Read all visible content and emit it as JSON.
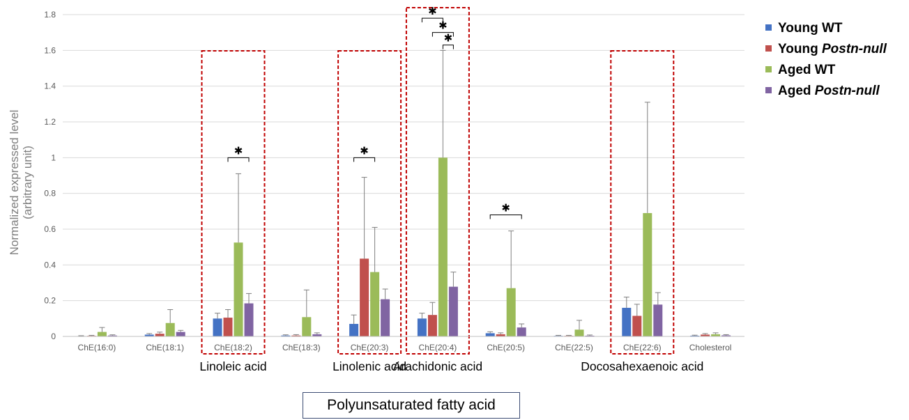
{
  "chart_data": {
    "type": "bar",
    "ylabel_lines": [
      "Normalized expressed level",
      "(arbitrary unit)"
    ],
    "ylim": [
      0,
      1.8
    ],
    "yticks": [
      "0",
      "0.2",
      "0.4",
      "0.6",
      "0.8",
      "1",
      "1.2",
      "1.4",
      "1.6",
      "1.8"
    ],
    "grid": true,
    "legend_position": "top-right",
    "categories": [
      "ChE(16:0)",
      "ChE(18:1)",
      "ChE(18:2)",
      "ChE(18:3)",
      "ChE(20:3)",
      "ChE(20:4)",
      "ChE(20:5)",
      "ChE(22:5)",
      "ChE(22:6)",
      "Cholesterol"
    ],
    "series": [
      {
        "name": "Young WT",
        "name_parts": [
          {
            "text": "Young WT",
            "italic": false
          }
        ],
        "color": "#4472C4",
        "values": [
          0.002,
          0.01,
          0.1,
          0.005,
          0.07,
          0.1,
          0.018,
          0.003,
          0.16,
          0.004
        ],
        "error_upper": [
          0.004,
          0.016,
          0.13,
          0.009,
          0.12,
          0.13,
          0.026,
          0.006,
          0.22,
          0.007
        ]
      },
      {
        "name": "Young Postn-null",
        "name_parts": [
          {
            "text": "Young ",
            "italic": false
          },
          {
            "text": "Postn-null",
            "italic": true
          }
        ],
        "color": "#C0504D",
        "values": [
          0.003,
          0.015,
          0.105,
          0.005,
          0.435,
          0.12,
          0.012,
          0.003,
          0.115,
          0.01
        ],
        "error_upper": [
          0.006,
          0.024,
          0.15,
          0.01,
          0.89,
          0.19,
          0.02,
          0.006,
          0.18,
          0.016
        ]
      },
      {
        "name": "Aged WT",
        "name_parts": [
          {
            "text": "Aged WT",
            "italic": false
          }
        ],
        "color": "#9BBB59",
        "values": [
          0.025,
          0.075,
          0.525,
          0.108,
          0.36,
          1.0,
          0.27,
          0.038,
          0.69,
          0.012
        ],
        "error_upper": [
          0.05,
          0.15,
          0.91,
          0.26,
          0.61,
          1.6,
          0.59,
          0.09,
          1.31,
          0.02
        ]
      },
      {
        "name": "Aged Postn-null",
        "name_parts": [
          {
            "text": "Aged ",
            "italic": false
          },
          {
            "text": "Postn-null",
            "italic": true
          }
        ],
        "color": "#8064A2",
        "values": [
          0.005,
          0.025,
          0.185,
          0.012,
          0.208,
          0.278,
          0.05,
          0.004,
          0.178,
          0.006
        ],
        "error_upper": [
          0.009,
          0.034,
          0.24,
          0.02,
          0.265,
          0.36,
          0.07,
          0.008,
          0.245,
          0.01
        ]
      }
    ],
    "highlighted_categories": [
      {
        "category": "ChE(18:2)",
        "label": "Linoleic acid"
      },
      {
        "category": "ChE(20:3)",
        "label": "Linolenic acid"
      },
      {
        "category": "ChE(20:4)",
        "label": "Arachidonic acid"
      },
      {
        "category": "ChE(22:6)",
        "label": "Docosahexaenoic acid"
      }
    ],
    "significance": [
      {
        "category": "ChE(18:2)",
        "from": 1,
        "to": 3,
        "y": 1.0,
        "symbol": "✱"
      },
      {
        "category": "ChE(20:3)",
        "from": 0,
        "to": 2,
        "y": 1.0,
        "symbol": "✱"
      },
      {
        "category": "ChE(20:4)",
        "from": 0,
        "to": 2,
        "y": 1.78,
        "symbol": "✱"
      },
      {
        "category": "ChE(20:4)",
        "from": 1,
        "to": 3,
        "y": 1.7,
        "symbol": "✱"
      },
      {
        "category": "ChE(20:4)",
        "from": 2,
        "to": 3,
        "y": 1.63,
        "symbol": "✱"
      },
      {
        "category": "ChE(20:5)",
        "from": 0,
        "to": 3,
        "y": 0.68,
        "symbol": "✱"
      }
    ],
    "group_label": "Polyunsaturated fatty acid",
    "colors": {
      "grid": "#d9d9d9",
      "highlight_box": "#c00000",
      "error_bar": "#7f7f7f"
    }
  }
}
